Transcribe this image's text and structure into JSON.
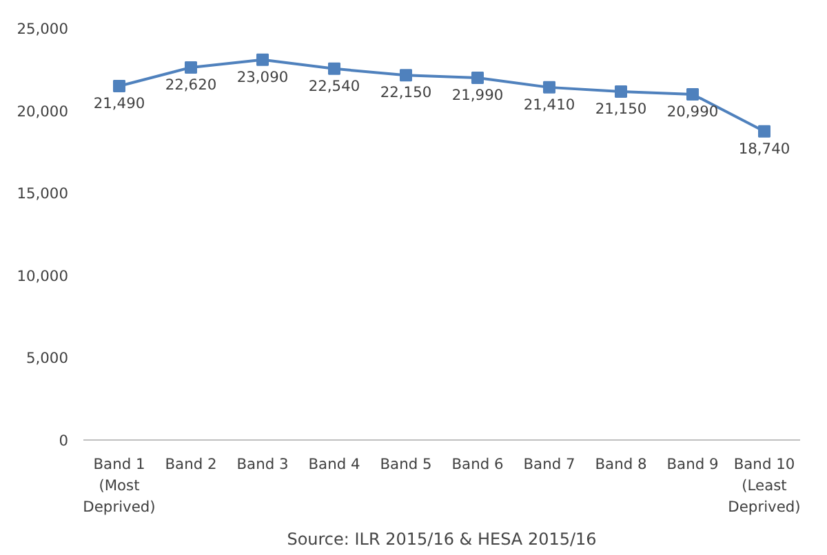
{
  "chart_data": {
    "type": "line",
    "categories": [
      "Band 1\n(Most\nDeprived)",
      "Band 2",
      "Band 3",
      "Band 4",
      "Band 5",
      "Band 6",
      "Band 7",
      "Band 8",
      "Band 9",
      "Band 10\n(Least\nDeprived)"
    ],
    "series": [
      {
        "color": "#4f81bd",
        "values": [
          21490,
          22620,
          23090,
          22540,
          22150,
          21990,
          21410,
          21150,
          20990,
          18740
        ],
        "value_labels": [
          "21,490",
          "22,620",
          "23,090",
          "22,540",
          "22,150",
          "21,990",
          "21,410",
          "21,150",
          "20,990",
          "18,740"
        ]
      }
    ],
    "ylim": [
      0,
      25000
    ],
    "yticks": [
      {
        "value": 0,
        "label": "0"
      },
      {
        "value": 5000,
        "label": "5,000"
      },
      {
        "value": 10000,
        "label": "10,000"
      },
      {
        "value": 15000,
        "label": "15,000"
      },
      {
        "value": 20000,
        "label": "20,000"
      },
      {
        "value": 25000,
        "label": "25,000"
      }
    ],
    "marker": "square",
    "line_style": "solid",
    "grid": false,
    "annotations": [
      "Source: ILR 2015/16 & HESA 2015/16"
    ]
  }
}
